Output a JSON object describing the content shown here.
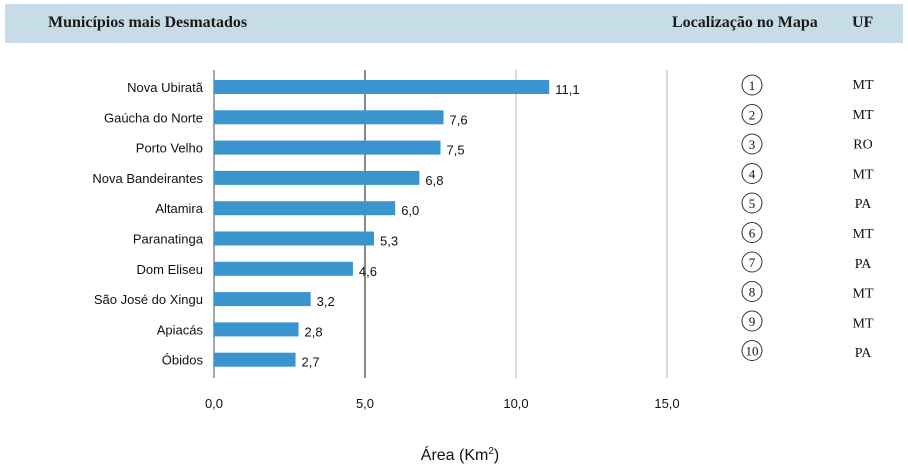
{
  "header": {
    "title": "Municípios mais Desmatados",
    "location_label": "Localização no Mapa",
    "uf_label": "UF"
  },
  "colors": {
    "header_bg": "#c6dde7",
    "bar": "#3a95cf",
    "axis": "#888888",
    "gridline": "#999999"
  },
  "chart_data": {
    "type": "bar",
    "orientation": "horizontal",
    "categories": [
      "Nova Ubiratã",
      "Gaúcha do Norte",
      "Porto Velho",
      "Nova Bandeirantes",
      "Altamira",
      "Paranatinga",
      "Dom Eliseu",
      "São José do Xingu",
      "Apiacás",
      "Óbidos"
    ],
    "values": [
      11.1,
      7.6,
      7.5,
      6.8,
      6.0,
      5.3,
      4.6,
      3.2,
      2.8,
      2.7
    ],
    "value_labels": [
      "11,1",
      "7,6",
      "7,5",
      "6,8",
      "6,0",
      "5,3",
      "4,6",
      "3,2",
      "2,8",
      "2,7"
    ],
    "xlim": [
      0,
      15
    ],
    "xticks": [
      0,
      5,
      10,
      15
    ],
    "xtick_labels": [
      "0,0",
      "5,0",
      "10,0",
      "15,0"
    ],
    "xlabel": "Área (Km",
    "xlabel_sup": "2",
    "xlabel_end": ")",
    "grid": "vertical",
    "title": ""
  },
  "map_locations": [
    "1",
    "2",
    "3",
    "4",
    "5",
    "6",
    "7",
    "8",
    "9",
    "10"
  ],
  "uf": [
    "MT",
    "MT",
    "RO",
    "MT",
    "PA",
    "MT",
    "PA",
    "MT",
    "MT",
    "PA"
  ]
}
